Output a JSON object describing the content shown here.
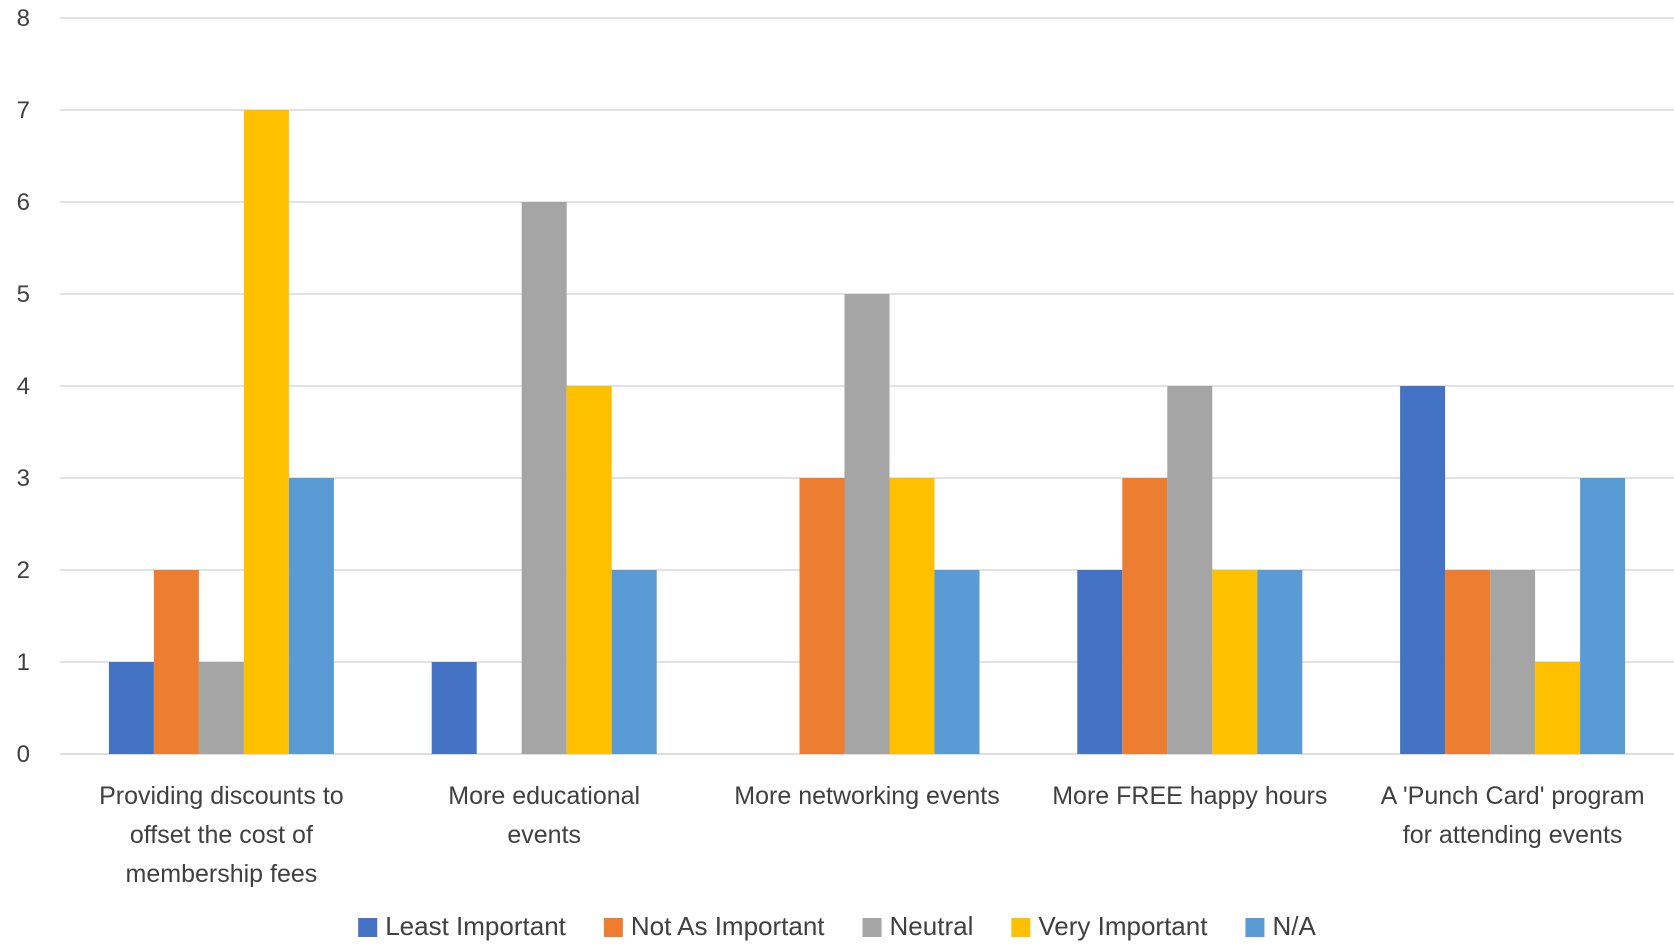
{
  "chart_data": {
    "type": "bar",
    "categories": [
      [
        "Providing discounts to",
        "offset the cost of",
        "membership fees"
      ],
      [
        "More educational",
        "events"
      ],
      [
        "More networking events"
      ],
      [
        "More FREE happy hours"
      ],
      [
        "A 'Punch Card' program",
        "for attending events"
      ]
    ],
    "series": [
      {
        "name": "Least Important",
        "color": "#4472C4",
        "values": [
          1,
          1,
          0,
          2,
          4
        ]
      },
      {
        "name": "Not As Important",
        "color": "#ED7D31",
        "values": [
          2,
          0,
          3,
          3,
          2
        ]
      },
      {
        "name": "Neutral",
        "color": "#A5A5A5",
        "values": [
          1,
          6,
          5,
          4,
          2
        ]
      },
      {
        "name": "Very Important",
        "color": "#FFC000",
        "values": [
          7,
          4,
          3,
          2,
          1
        ]
      },
      {
        "name": "N/A",
        "color": "#5B9BD5",
        "values": [
          3,
          2,
          2,
          2,
          3
        ]
      }
    ],
    "ylim": [
      0,
      8
    ],
    "yticks": [
      0,
      1,
      2,
      3,
      4,
      5,
      6,
      7,
      8
    ],
    "grid": true,
    "legend_position": "bottom"
  }
}
